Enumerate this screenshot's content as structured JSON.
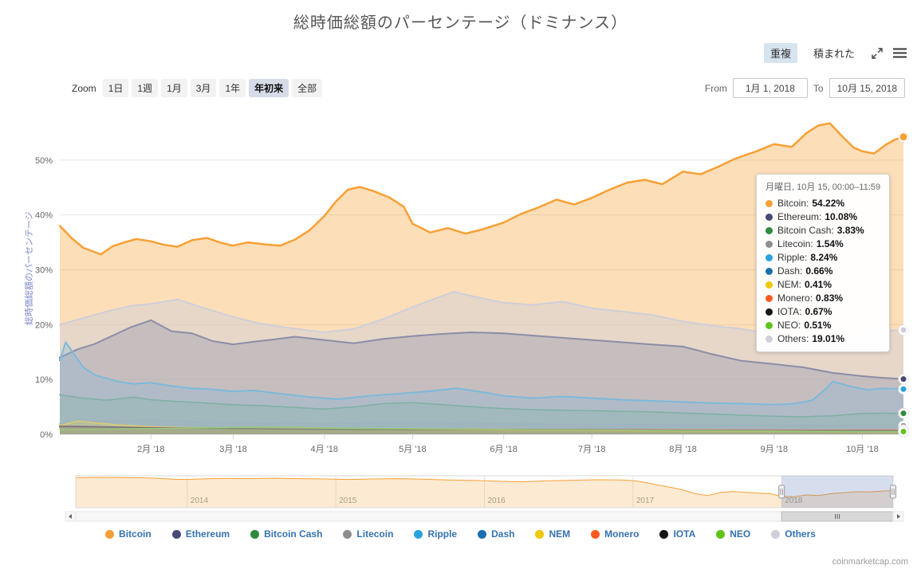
{
  "title": "総時価総額のパーセンテージ（ドミナンス）",
  "toolbar": {
    "overlap": "重複",
    "stacked": "積まれた"
  },
  "range_selector": {
    "zoom_label": "Zoom",
    "buttons": [
      "1日",
      "1週",
      "1月",
      "3月",
      "1年",
      "年初来",
      "全部"
    ],
    "selected": "年初来",
    "from_label": "From",
    "from_value": "1月 1, 2018",
    "to_label": "To",
    "to_value": "10月 15, 2018"
  },
  "y_axis": {
    "title": "総時価総額のパーセンテージ",
    "tick_values": [
      0,
      10,
      20,
      30,
      40,
      50
    ],
    "tick_labels": [
      "0%",
      "10%",
      "20%",
      "30%",
      "40%",
      "50%"
    ]
  },
  "x_axis": {
    "labels": [
      "2月 '18",
      "3月 '18",
      "4月 '18",
      "5月 '18",
      "6月 '18",
      "7月 '18",
      "8月 '18",
      "9月 '18",
      "10月 '18"
    ],
    "label_days": [
      31,
      59,
      90,
      120,
      151,
      181,
      212,
      243,
      273
    ]
  },
  "tooltip": {
    "header": "月曜日, 10月 15, 00:00–11:59",
    "rows": [
      {
        "name": "Bitcoin",
        "value": "54.22%"
      },
      {
        "name": "Ethereum",
        "value": "10.08%"
      },
      {
        "name": "Bitcoin Cash",
        "value": "3.83%"
      },
      {
        "name": "Litecoin",
        "value": "1.54%"
      },
      {
        "name": "Ripple",
        "value": "8.24%"
      },
      {
        "name": "Dash",
        "value": "0.66%"
      },
      {
        "name": "NEM",
        "value": "0.41%"
      },
      {
        "name": "Monero",
        "value": "0.83%"
      },
      {
        "name": "IOTA",
        "value": "0.67%"
      },
      {
        "name": "NEO",
        "value": "0.51%"
      },
      {
        "name": "Others",
        "value": "19.01%"
      }
    ]
  },
  "legend": [
    "Bitcoin",
    "Ethereum",
    "Bitcoin Cash",
    "Litecoin",
    "Ripple",
    "Dash",
    "NEM",
    "Monero",
    "IOTA",
    "NEO",
    "Others"
  ],
  "navigator_ui": {
    "year_labels": [
      "2014",
      "2015",
      "2016",
      "2017",
      "2018"
    ],
    "year_months": [
      9,
      21,
      33,
      45,
      57
    ],
    "selection_start_month": 57
  },
  "watermark": "coinmarketcap.com",
  "chart_data": {
    "type": "area",
    "title": "総時価総額のパーセンテージ（ドミナンス）",
    "mode": "overlap",
    "xlabel": "",
    "ylabel": "総時価総額のパーセンテージ",
    "x_unit": "days since 2018-01-01",
    "x_range": [
      0,
      287
    ],
    "ylim": [
      0,
      60
    ],
    "y_ticks_percent": [
      0,
      10,
      20,
      30,
      40,
      50
    ],
    "grid": "horizontal",
    "legend_position": "bottom",
    "series": [
      {
        "name": "Bitcoin",
        "color": "#f7a035",
        "fill_opacity": 0.35,
        "line_width": 2.5,
        "x": [
          0,
          4,
          8,
          12,
          14,
          18,
          22,
          26,
          31,
          35,
          40,
          45,
          50,
          55,
          59,
          64,
          70,
          75,
          80,
          85,
          90,
          94,
          98,
          102,
          107,
          112,
          117,
          120,
          126,
          132,
          138,
          144,
          151,
          157,
          163,
          169,
          175,
          181,
          187,
          193,
          199,
          205,
          212,
          218,
          224,
          230,
          237,
          243,
          249,
          254,
          258,
          262,
          266,
          270,
          273,
          277,
          281,
          284,
          287
        ],
        "y": [
          38,
          35.8,
          34,
          33.2,
          32.8,
          34.3,
          35,
          35.6,
          35.2,
          34.6,
          34.2,
          35.4,
          35.8,
          34.9,
          34.4,
          35,
          34.6,
          34.4,
          35.5,
          37.2,
          39.8,
          42.5,
          44.6,
          45.1,
          44.3,
          43.2,
          41.5,
          38.4,
          36.8,
          37.6,
          36.6,
          37.4,
          38.6,
          40.2,
          41.4,
          42.8,
          41.9,
          43.1,
          44.6,
          45.9,
          46.4,
          45.6,
          47.9,
          47.4,
          48.8,
          50.3,
          51.6,
          52.9,
          52.4,
          54.9,
          56.3,
          56.7,
          54.4,
          52.3,
          51.6,
          51.2,
          52.8,
          53.7,
          54.22
        ]
      },
      {
        "name": "Ethereum",
        "color": "#474a77",
        "fill_opacity": 0.35,
        "line_width": 2,
        "x": [
          0,
          6,
          12,
          18,
          24,
          31,
          38,
          45,
          52,
          59,
          66,
          73,
          80,
          90,
          100,
          110,
          120,
          130,
          140,
          151,
          161,
          171,
          181,
          191,
          201,
          212,
          222,
          232,
          243,
          253,
          263,
          273,
          280,
          287
        ],
        "y": [
          14,
          15.5,
          16.5,
          18,
          19.5,
          20.8,
          18.8,
          18.4,
          17,
          16.4,
          16.9,
          17.3,
          17.8,
          17.2,
          16.6,
          17.4,
          17.9,
          18.3,
          18.6,
          18.4,
          18,
          17.6,
          17.2,
          16.8,
          16.4,
          16,
          14.6,
          13.4,
          12.8,
          12.2,
          11.2,
          10.6,
          10.3,
          10.08
        ]
      },
      {
        "name": "Bitcoin Cash",
        "color": "#2f8a3e",
        "fill_opacity": 0.3,
        "line_width": 1.5,
        "x": [
          0,
          8,
          16,
          25,
          31,
          40,
          50,
          59,
          70,
          80,
          90,
          100,
          110,
          120,
          128,
          136,
          144,
          151,
          161,
          171,
          181,
          191,
          201,
          212,
          222,
          232,
          243,
          253,
          263,
          273,
          280,
          287
        ],
        "y": [
          7.2,
          6.6,
          6.2,
          6.8,
          6.3,
          6.0,
          5.7,
          5.4,
          5.2,
          4.9,
          4.6,
          5.0,
          5.6,
          5.8,
          5.5,
          5.2,
          4.9,
          4.7,
          4.5,
          4.4,
          4.3,
          4.2,
          4.1,
          3.9,
          3.7,
          3.5,
          3.3,
          3.2,
          3.4,
          3.8,
          3.85,
          3.83
        ]
      },
      {
        "name": "Litecoin",
        "color": "#8e8e8e",
        "fill_opacity": 0.3,
        "line_width": 1.5,
        "x": [
          0,
          15,
          31,
          45,
          59,
          75,
          90,
          105,
          120,
          135,
          151,
          166,
          181,
          196,
          212,
          227,
          243,
          258,
          273,
          287
        ],
        "y": [
          1.9,
          2.4,
          2.6,
          2.3,
          2.1,
          2.0,
          1.9,
          2.1,
          2.2,
          2.0,
          1.9,
          1.85,
          1.8,
          1.75,
          1.7,
          1.65,
          1.6,
          1.58,
          1.55,
          1.54
        ]
      },
      {
        "name": "Ripple",
        "color": "#29a3dd",
        "fill_opacity": 0.3,
        "line_width": 2,
        "x": [
          0,
          2,
          5,
          8,
          12,
          16,
          20,
          25,
          31,
          38,
          45,
          52,
          59,
          66,
          75,
          85,
          95,
          105,
          115,
          125,
          135,
          145,
          151,
          161,
          171,
          181,
          191,
          201,
          212,
          222,
          232,
          243,
          250,
          256,
          260,
          263,
          266,
          270,
          275,
          280,
          284,
          287
        ],
        "y": [
          13.5,
          16.8,
          14.5,
          12.2,
          10.8,
          10.2,
          9.6,
          9.2,
          9.4,
          8.8,
          8.4,
          8.2,
          7.8,
          8.0,
          7.4,
          6.8,
          6.4,
          7.0,
          7.4,
          7.8,
          8.4,
          7.6,
          7.0,
          6.6,
          6.9,
          6.6,
          6.3,
          6.1,
          5.9,
          5.7,
          5.6,
          5.4,
          5.6,
          6.2,
          8.0,
          9.6,
          9.2,
          8.6,
          8.1,
          8.4,
          8.3,
          8.24
        ]
      },
      {
        "name": "Dash",
        "color": "#1a6fae",
        "fill_opacity": 0.3,
        "line_width": 1.5,
        "x": [
          0,
          31,
          59,
          90,
          120,
          151,
          181,
          212,
          243,
          273,
          287
        ],
        "y": [
          1.25,
          1.1,
          1.0,
          0.92,
          0.95,
          0.88,
          0.82,
          0.76,
          0.71,
          0.67,
          0.66
        ]
      },
      {
        "name": "NEM",
        "color": "#edc800",
        "fill_opacity": 0.35,
        "line_width": 1.5,
        "x": [
          0,
          6,
          12,
          20,
          31,
          45,
          59,
          90,
          120,
          151,
          181,
          212,
          243,
          273,
          287
        ],
        "y": [
          1.6,
          2.4,
          2.1,
          1.7,
          1.4,
          1.2,
          1.05,
          0.85,
          0.75,
          0.65,
          0.58,
          0.5,
          0.45,
          0.42,
          0.41
        ]
      },
      {
        "name": "Monero",
        "color": "#ff5b22",
        "fill_opacity": 0.3,
        "line_width": 1.5,
        "x": [
          0,
          31,
          59,
          90,
          120,
          151,
          181,
          212,
          243,
          273,
          287
        ],
        "y": [
          1.45,
          1.25,
          1.1,
          1.0,
          1.02,
          0.95,
          0.9,
          0.85,
          0.8,
          0.82,
          0.83
        ]
      },
      {
        "name": "IOTA",
        "color": "#151515",
        "fill_opacity": 0.25,
        "line_width": 1.5,
        "x": [
          0,
          31,
          59,
          90,
          120,
          151,
          181,
          212,
          243,
          273,
          287
        ],
        "y": [
          1.5,
          1.2,
          1.05,
          0.9,
          0.85,
          0.92,
          0.85,
          0.75,
          0.7,
          0.68,
          0.67
        ]
      },
      {
        "name": "NEO",
        "color": "#5fc31d",
        "fill_opacity": 0.3,
        "line_width": 1.5,
        "x": [
          0,
          31,
          59,
          75,
          90,
          120,
          151,
          181,
          212,
          243,
          273,
          287
        ],
        "y": [
          0.85,
          1.05,
          1.25,
          1.35,
          1.15,
          1.0,
          0.9,
          0.8,
          0.7,
          0.6,
          0.52,
          0.51
        ]
      },
      {
        "name": "Others",
        "color": "#cfcfda",
        "fill_opacity": 0.5,
        "line_width": 2,
        "x": [
          0,
          8,
          16,
          24,
          31,
          40,
          48,
          59,
          68,
          78,
          90,
          100,
          110,
          120,
          128,
          134,
          140,
          151,
          161,
          171,
          181,
          191,
          201,
          212,
          222,
          232,
          243,
          253,
          263,
          273,
          280,
          287
        ],
        "y": [
          20,
          21.2,
          22.4,
          23.4,
          23.8,
          24.6,
          23.2,
          21.4,
          20.2,
          19.4,
          18.6,
          19.2,
          21.0,
          23.2,
          24.8,
          26.0,
          25.2,
          24.0,
          23.6,
          24.2,
          23.0,
          22.4,
          21.8,
          20.6,
          19.8,
          19.2,
          18.2,
          17.6,
          18.0,
          18.6,
          18.9,
          19.01
        ]
      }
    ],
    "navigator": {
      "name": "Bitcoin",
      "color": "#f7a035",
      "x_unit": "months since 2013-04",
      "ylim": [
        0,
        100
      ],
      "x": [
        0,
        2,
        4,
        6,
        8,
        9,
        10,
        12,
        14,
        16,
        18,
        20,
        22,
        24,
        26,
        28,
        30,
        32,
        34,
        36,
        38,
        40,
        42,
        44,
        45,
        46,
        47,
        48,
        49,
        50,
        51,
        52,
        53,
        54,
        55,
        56,
        57,
        58,
        59,
        60,
        61,
        62,
        63,
        64,
        65,
        66
      ],
      "y": [
        94,
        95,
        94.5,
        93,
        89,
        88.5,
        90,
        92,
        91,
        92.5,
        91,
        90,
        88.5,
        90,
        91,
        89.5,
        87,
        85.5,
        83,
        81,
        84,
        86,
        87.5,
        87,
        85,
        79,
        71,
        64,
        56,
        44,
        38,
        47,
        51,
        48,
        46,
        44,
        36,
        34,
        40,
        38,
        44,
        47,
        50,
        49.5,
        51.5,
        54
      ]
    }
  }
}
